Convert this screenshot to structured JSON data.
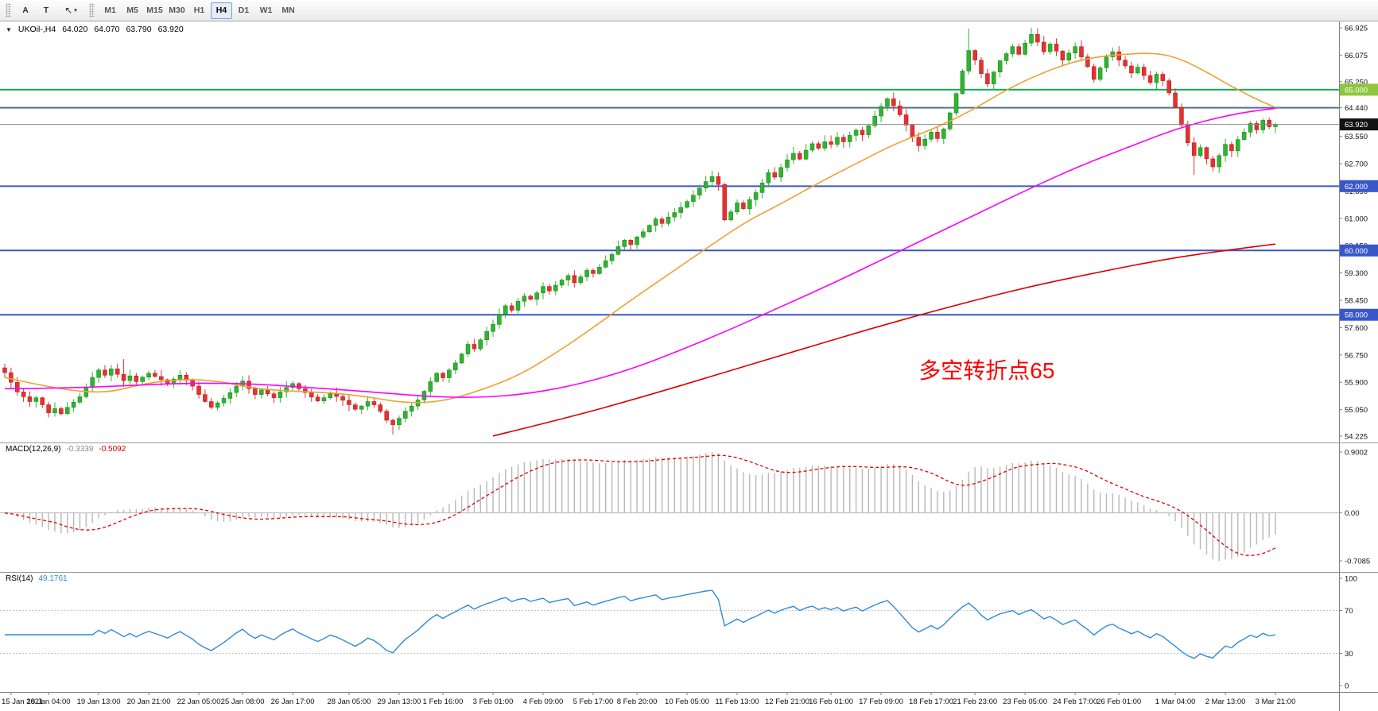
{
  "toolbar": {
    "button_a": "A",
    "button_t": "T",
    "cursor_icon": "arrow-pointer",
    "timeframes": [
      "M1",
      "M5",
      "M15",
      "M30",
      "H1",
      "H4",
      "D1",
      "W1",
      "MN"
    ],
    "active_timeframe": "H4"
  },
  "chart_header": {
    "symbol_period": "UKOil-,H4",
    "open": "64.020",
    "high": "64.070",
    "low": "63.790",
    "close": "63.920"
  },
  "annotation": {
    "text": "多空转折点65",
    "color": "#FF0000",
    "bar": 146,
    "price": 56.6
  },
  "chart_data": {
    "type": "candlestick",
    "title": "UKOil-,H4",
    "symbol": "UKOil-",
    "timeframe": "H4",
    "price_range": {
      "min": 54.225,
      "max": 66.925
    },
    "price_ticks": [
      66.925,
      66.075,
      65.25,
      64.44,
      63.55,
      62.7,
      61.85,
      61.0,
      60.15,
      59.3,
      58.45,
      57.6,
      56.75,
      55.9,
      55.05,
      54.225
    ],
    "first_open": 56.35,
    "closes": [
      56.2,
      55.9,
      55.6,
      55.45,
      55.3,
      55.42,
      55.2,
      54.95,
      55.08,
      54.92,
      55.12,
      55.28,
      55.45,
      55.75,
      56.05,
      56.28,
      56.12,
      56.32,
      56.15,
      55.95,
      56.1,
      55.92,
      56.06,
      56.18,
      56.08,
      55.98,
      55.86,
      56.0,
      56.12,
      55.96,
      55.78,
      55.52,
      55.3,
      55.12,
      55.26,
      55.4,
      55.58,
      55.78,
      55.94,
      55.7,
      55.52,
      55.66,
      55.54,
      55.42,
      55.6,
      55.74,
      55.86,
      55.7,
      55.58,
      55.44,
      55.32,
      55.42,
      55.54,
      55.46,
      55.34,
      55.2,
      55.06,
      55.16,
      55.3,
      55.2,
      55.0,
      54.72,
      54.58,
      54.78,
      55.0,
      55.16,
      55.35,
      55.62,
      55.92,
      56.18,
      56.04,
      56.28,
      56.5,
      56.78,
      57.08,
      56.94,
      57.22,
      57.48,
      57.7,
      58.02,
      58.28,
      58.14,
      58.42,
      58.58,
      58.48,
      58.68,
      58.88,
      58.74,
      58.92,
      59.08,
      59.22,
      59.0,
      59.18,
      59.38,
      59.28,
      59.48,
      59.68,
      59.88,
      60.12,
      60.32,
      60.18,
      60.42,
      60.58,
      60.78,
      60.98,
      60.84,
      61.04,
      61.18,
      61.34,
      61.52,
      61.72,
      61.94,
      62.14,
      62.3,
      62.05,
      60.95,
      61.2,
      61.48,
      61.3,
      61.58,
      61.8,
      62.1,
      62.42,
      62.28,
      62.58,
      62.82,
      63.02,
      62.84,
      63.12,
      63.32,
      63.18,
      63.38,
      63.3,
      63.52,
      63.38,
      63.58,
      63.74,
      63.6,
      63.88,
      64.18,
      64.48,
      64.72,
      64.5,
      64.22,
      63.9,
      63.52,
      63.26,
      63.46,
      63.68,
      63.48,
      63.78,
      64.28,
      64.88,
      65.58,
      66.22,
      65.92,
      65.5,
      65.18,
      65.55,
      65.9,
      66.12,
      66.34,
      66.1,
      66.45,
      66.72,
      66.48,
      66.18,
      66.42,
      66.2,
      65.92,
      66.14,
      66.34,
      66.02,
      65.72,
      65.32,
      65.68,
      66.02,
      66.18,
      65.92,
      65.74,
      65.52,
      65.7,
      65.44,
      65.22,
      65.48,
      65.28,
      64.9,
      64.45,
      63.9,
      63.35,
      62.95,
      63.2,
      62.85,
      62.6,
      62.95,
      63.3,
      63.1,
      63.45,
      63.68,
      63.95,
      63.75,
      64.05,
      63.85,
      63.92
    ],
    "wick_overrides": {
      "19": {
        "high": 56.62
      },
      "62": {
        "low": 54.28
      },
      "154": {
        "high": 66.9
      },
      "164": {
        "high": 66.925
      },
      "190": {
        "low": 62.35
      }
    },
    "up_color": "#2eb52e",
    "up_border": "#1e7a1e",
    "down_color": "#e23232",
    "down_border": "#b01818",
    "hlines": [
      {
        "price": 65.0,
        "color": "#00b050",
        "width": 2,
        "badge": "65.000",
        "badge_bg": "#8dc63f"
      },
      {
        "price": 64.44,
        "color": "#54738f",
        "width": 2,
        "badge": null,
        "badge_bg": null
      },
      {
        "price": 62.0,
        "color": "#3a57c8",
        "width": 2,
        "badge": "62.000",
        "badge_bg": "#3a57c8"
      },
      {
        "price": 60.0,
        "color": "#3a57c8",
        "width": 2,
        "badge": "60.000",
        "badge_bg": "#3a57c8"
      },
      {
        "price": 58.0,
        "color": "#3a57c8",
        "width": 2,
        "badge": "58.000",
        "badge_bg": "#3a57c8"
      }
    ],
    "bid": {
      "price": 63.92,
      "label": "63.920",
      "line_color": "#888888",
      "badge_bg": "#111111"
    },
    "moving_averages": [
      {
        "name": "ma-fast",
        "color": "#f0a030",
        "points": [
          [
            0,
            56.05
          ],
          [
            8,
            55.7
          ],
          [
            16,
            55.55
          ],
          [
            22,
            55.85
          ],
          [
            28,
            56.0
          ],
          [
            34,
            55.95
          ],
          [
            40,
            55.7
          ],
          [
            46,
            55.62
          ],
          [
            52,
            55.58
          ],
          [
            58,
            55.45
          ],
          [
            64,
            55.25
          ],
          [
            70,
            55.3
          ],
          [
            76,
            55.65
          ],
          [
            82,
            56.1
          ],
          [
            88,
            56.8
          ],
          [
            94,
            57.6
          ],
          [
            100,
            58.45
          ],
          [
            106,
            59.25
          ],
          [
            112,
            60.05
          ],
          [
            118,
            60.85
          ],
          [
            124,
            61.45
          ],
          [
            130,
            62.1
          ],
          [
            136,
            62.7
          ],
          [
            142,
            63.3
          ],
          [
            148,
            63.75
          ],
          [
            154,
            64.3
          ],
          [
            160,
            65.0
          ],
          [
            166,
            65.55
          ],
          [
            172,
            65.95
          ],
          [
            178,
            66.1
          ],
          [
            184,
            66.15
          ],
          [
            188,
            65.95
          ],
          [
            192,
            65.55
          ],
          [
            196,
            65.1
          ],
          [
            200,
            64.7
          ],
          [
            203,
            64.45
          ]
        ]
      },
      {
        "name": "ma-mid",
        "color": "#ff00ff",
        "points": [
          [
            0,
            55.7
          ],
          [
            10,
            55.72
          ],
          [
            20,
            55.8
          ],
          [
            30,
            55.88
          ],
          [
            40,
            55.85
          ],
          [
            50,
            55.72
          ],
          [
            60,
            55.58
          ],
          [
            68,
            55.45
          ],
          [
            76,
            55.42
          ],
          [
            84,
            55.55
          ],
          [
            92,
            55.85
          ],
          [
            100,
            56.3
          ],
          [
            108,
            56.9
          ],
          [
            116,
            57.55
          ],
          [
            124,
            58.25
          ],
          [
            132,
            58.95
          ],
          [
            140,
            59.7
          ],
          [
            148,
            60.45
          ],
          [
            156,
            61.2
          ],
          [
            164,
            61.95
          ],
          [
            172,
            62.65
          ],
          [
            180,
            63.25
          ],
          [
            186,
            63.7
          ],
          [
            192,
            64.05
          ],
          [
            198,
            64.3
          ],
          [
            203,
            64.42
          ]
        ]
      },
      {
        "name": "ma-slow",
        "color": "#dd0000",
        "points": [
          [
            78,
            54.23
          ],
          [
            90,
            54.8
          ],
          [
            102,
            55.45
          ],
          [
            114,
            56.15
          ],
          [
            126,
            56.85
          ],
          [
            138,
            57.55
          ],
          [
            150,
            58.2
          ],
          [
            162,
            58.8
          ],
          [
            174,
            59.3
          ],
          [
            186,
            59.75
          ],
          [
            195,
            60.0
          ],
          [
            203,
            60.2
          ]
        ]
      }
    ],
    "x_labels": [
      {
        "bar": 1,
        "label": "15 Jan 2021"
      },
      {
        "bar": 7,
        "label": "18 Jan 04:00"
      },
      {
        "bar": 15,
        "label": "19 Jan 13:00"
      },
      {
        "bar": 23,
        "label": "20 Jan 21:00"
      },
      {
        "bar": 31,
        "label": "22 Jan 05:00"
      },
      {
        "bar": 38,
        "label": "25 Jan 08:00"
      },
      {
        "bar": 46,
        "label": "26 Jan 17:00"
      },
      {
        "bar": 55,
        "label": "28 Jan 05:00"
      },
      {
        "bar": 63,
        "label": "29 Jan 13:00"
      },
      {
        "bar": 70,
        "label": "1 Feb 16:00"
      },
      {
        "bar": 78,
        "label": "3 Feb 01:00"
      },
      {
        "bar": 86,
        "label": "4 Feb 09:00"
      },
      {
        "bar": 94,
        "label": "5 Feb 17:00"
      },
      {
        "bar": 101,
        "label": "8 Feb 20:00"
      },
      {
        "bar": 109,
        "label": "10 Feb 05:00"
      },
      {
        "bar": 117,
        "label": "11 Feb 13:00"
      },
      {
        "bar": 125,
        "label": "12 Feb 21:00"
      },
      {
        "bar": 132,
        "label": "16 Feb 01:00"
      },
      {
        "bar": 140,
        "label": "17 Feb 09:00"
      },
      {
        "bar": 148,
        "label": "18 Feb 17:00"
      },
      {
        "bar": 155,
        "label": "21 Feb 23:00"
      },
      {
        "bar": 163,
        "label": "23 Feb 05:00"
      },
      {
        "bar": 171,
        "label": "24 Feb 17:00"
      },
      {
        "bar": 178,
        "label": "26 Feb 01:00"
      },
      {
        "bar": 187,
        "label": "1 Mar 04:00"
      },
      {
        "bar": 195,
        "label": "2 Mar 13:00"
      },
      {
        "bar": 203,
        "label": "3 Mar 21:00"
      }
    ],
    "macd": {
      "name": "MACD(12,26,9)",
      "value_main": "-0.3339",
      "value_signal": "-0.5092",
      "fast": 12,
      "slow": 26,
      "signal_period": 9,
      "scale_top": "0.9002",
      "scale_zero": "0.00",
      "scale_bottom": "-0.7085",
      "histogram_color": "#b8b8b8",
      "signal_color": "#e00000"
    },
    "rsi": {
      "name": "RSI(14)",
      "value": "49.1761",
      "period": 14,
      "scale_labels": [
        "100",
        "70",
        "30",
        "0"
      ],
      "levels": [
        70,
        30
      ],
      "color": "#2e8bd8"
    }
  }
}
